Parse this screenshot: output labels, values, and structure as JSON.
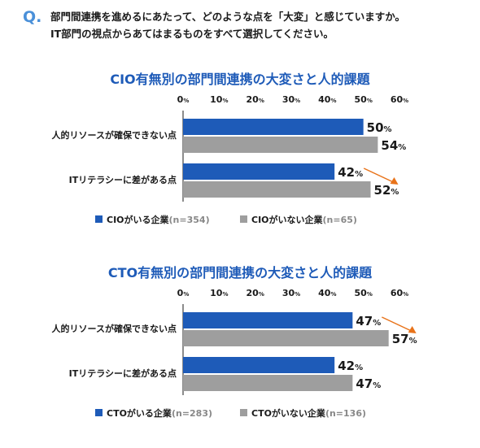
{
  "header": {
    "q_mark": "Q.",
    "question_line1": "部門間連携を進めるにあたって、どのような点を「大変」と感じていますか。",
    "question_line2": "IT部門の視点からあてはまるものをすべて選択してください。"
  },
  "colors": {
    "primary": "#1e5bb8",
    "secondary": "#9e9e9e",
    "arrow": "#e8731a",
    "q_mark": "#4a90d9"
  },
  "chart_data": [
    {
      "type": "bar",
      "orientation": "horizontal",
      "title": "CIO有無別の部門間連携の大変さと人的課題",
      "xlim": [
        0,
        60
      ],
      "ticks": [
        0,
        10,
        20,
        30,
        40,
        50,
        60
      ],
      "tick_unit": "%",
      "categories": [
        "人的リソースが確保できない点",
        "ITリテラシーに差がある点"
      ],
      "series": [
        {
          "name": "CIOがいる企業",
          "n_label": "(n=354)",
          "values": [
            50,
            42
          ]
        },
        {
          "name": "CIOがいない企業",
          "n_label": "(n=65)",
          "values": [
            54,
            52
          ]
        }
      ],
      "arrow_category": 1,
      "legend_position": "bottom-left"
    },
    {
      "type": "bar",
      "orientation": "horizontal",
      "title": "CTO有無別の部門間連携の大変さと人的課題",
      "xlim": [
        0,
        60
      ],
      "ticks": [
        0,
        10,
        20,
        30,
        40,
        50,
        60
      ],
      "tick_unit": "%",
      "categories": [
        "人的リソースが確保できない点",
        "ITリテラシーに差がある点"
      ],
      "series": [
        {
          "name": "CTOがいる企業",
          "n_label": "(n=283)",
          "values": [
            47,
            42
          ]
        },
        {
          "name": "CTOがいない企業",
          "n_label": "(n=136)",
          "values": [
            57,
            47
          ]
        }
      ],
      "arrow_category": 0,
      "legend_position": "bottom-left"
    }
  ]
}
